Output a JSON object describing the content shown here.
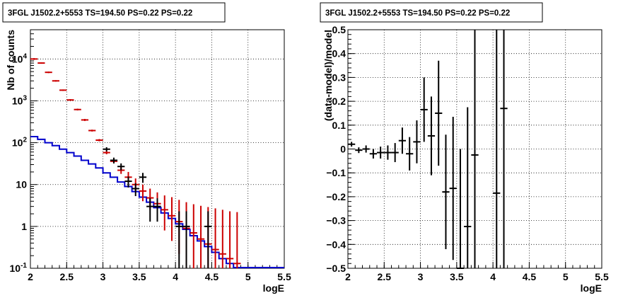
{
  "left_panel": {
    "title": "3FGL J1502.2+5553 TS=194.50 PS=0.22 PS=0.22",
    "xlabel": "logE",
    "ylabel": "Nb of counts"
  },
  "right_panel": {
    "title": "3FGL J1502.2+5553 TS=194.50 PS=0.22 PS=0.22",
    "xlabel": "logE",
    "ylabel": "(data-model)/model"
  },
  "colors": {
    "data": "#000000",
    "model_total": "#cc0000",
    "model_source": "#0000cc",
    "grid": "#000000"
  },
  "chart_data": [
    {
      "type": "line",
      "title": "3FGL J1502.2+5553 TS=194.50 PS=0.22 PS=0.22",
      "xlabel": "logE",
      "ylabel": "Nb of counts",
      "xlim": [
        2,
        5.5
      ],
      "ylim": [
        0.1,
        50000
      ],
      "yscale": "log",
      "grid": true,
      "xticks": [
        "2",
        "2.5",
        "3",
        "3.5",
        "4",
        "4.5",
        "5",
        "5.5"
      ],
      "yticks": [
        {
          "v": 0.1,
          "base": "10",
          "exp": "-1"
        },
        {
          "v": 1,
          "base": "1",
          "exp": ""
        },
        {
          "v": 10,
          "base": "10",
          "exp": ""
        },
        {
          "v": 100,
          "base": "10",
          "exp": "2"
        },
        {
          "v": 1000,
          "base": "10",
          "exp": "3"
        },
        {
          "v": 10000,
          "base": "10",
          "exp": "4"
        }
      ],
      "series": [
        {
          "kind": "step",
          "bin_edges": [
            2.0,
            2.1,
            2.2,
            2.3,
            2.4,
            2.5,
            2.6,
            2.7,
            2.8,
            2.9,
            3.0,
            3.1,
            3.2,
            3.3,
            3.4,
            3.5,
            3.6,
            3.7,
            3.8,
            3.9,
            4.0,
            4.1,
            4.2,
            4.3,
            4.4,
            4.5,
            4.6,
            4.7,
            4.8,
            4.9,
            5.0,
            5.1,
            5.2,
            5.3,
            5.4,
            5.5
          ],
          "values": [
            140,
            120,
            100,
            85,
            70,
            58,
            48,
            38,
            31,
            25,
            19,
            15,
            11.5,
            9,
            6.8,
            5,
            3.8,
            2.8,
            2.1,
            1.55,
            1.15,
            0.85,
            0.6,
            0.45,
            0.33,
            0.24,
            0.17,
            0.13,
            0.1,
            0.1,
            0.1,
            0.1,
            0.1,
            0.1,
            0.1
          ]
        },
        {
          "kind": "errorbar",
          "x": [
            2.05,
            2.15,
            2.25,
            2.35,
            2.45,
            2.55,
            2.65,
            2.75,
            2.85,
            2.95,
            3.05,
            3.15,
            3.25,
            3.35,
            3.45,
            3.55,
            3.65,
            3.75,
            3.85,
            3.95,
            4.05,
            4.15,
            4.25,
            4.35,
            4.45,
            4.55,
            4.65,
            4.75,
            4.85
          ],
          "y": [
            10000,
            8000,
            4800,
            3000,
            1800,
            1050,
            620,
            350,
            195,
            115,
            58,
            36,
            22,
            15,
            10,
            7,
            4.8,
            3.5,
            2.5,
            1.8,
            1.3,
            0.9,
            0.7,
            0.5,
            0.38,
            0.28,
            0.22,
            0.17,
            0.13
          ],
          "ylo": [
            9500,
            7700,
            4600,
            2880,
            1730,
            1000,
            590,
            330,
            185,
            108,
            53,
            32,
            18,
            11,
            7,
            4,
            2.5,
            1.4,
            0.8,
            0.45,
            0.22,
            0.1,
            0.1,
            0.1,
            0.1,
            0.1,
            0.1,
            0.1,
            0.1
          ],
          "yhi": [
            10500,
            8300,
            5000,
            3120,
            1870,
            1100,
            650,
            370,
            205,
            122,
            63,
            40,
            27,
            20,
            14,
            10,
            8,
            6.5,
            5.5,
            5,
            4.3,
            3.8,
            3.4,
            3.1,
            2.9,
            2.7,
            2.5,
            2.3,
            2.2
          ]
        },
        {
          "kind": "errorbar",
          "x": [
            3.05,
            3.15,
            3.25,
            3.35,
            3.45,
            3.55,
            3.65,
            3.75,
            4.05,
            4.15,
            4.45
          ],
          "y": [
            70,
            38,
            27,
            12,
            8,
            15,
            3,
            3,
            1,
            1,
            1
          ],
          "ylo": [
            62,
            32,
            22,
            8.5,
            5.3,
            11,
            1.3,
            1.3,
            0.1,
            0.1,
            0.1
          ],
          "yhi": [
            78,
            44,
            32,
            15.5,
            10.7,
            19,
            4.7,
            4.7,
            2.3,
            2.3,
            2.3
          ]
        }
      ]
    },
    {
      "type": "scatter",
      "title": "3FGL J1502.2+5553 TS=194.50 PS=0.22 PS=0.22",
      "xlabel": "logE",
      "ylabel": "(data-model)/model",
      "xlim": [
        2,
        5.5
      ],
      "ylim": [
        -0.5,
        0.5
      ],
      "grid": true,
      "xticks": [
        "2",
        "2.5",
        "3",
        "3.5",
        "4",
        "4.5",
        "5",
        "5.5"
      ],
      "yticks": [
        "−0.5",
        "−0.4",
        "−0.3",
        "−0.2",
        "−0.1",
        "0",
        "0.1",
        "0.2",
        "0.3",
        "0.4",
        "0.5"
      ],
      "series": [
        {
          "kind": "errorbar",
          "x": [
            2.05,
            2.15,
            2.25,
            2.35,
            2.45,
            2.55,
            2.65,
            2.75,
            2.85,
            2.95,
            3.05,
            3.15,
            3.25,
            3.35,
            3.45,
            3.55,
            3.65,
            3.75,
            4.05,
            4.15
          ],
          "y": [
            0.02,
            -0.005,
            0.0,
            -0.02,
            -0.015,
            -0.015,
            -0.015,
            0.035,
            -0.02,
            0.03,
            0.165,
            0.055,
            0.15,
            -0.18,
            -0.165,
            -0.5,
            -0.325,
            -0.025,
            -0.185,
            0.17
          ],
          "err": [
            0.01,
            0.012,
            0.015,
            0.02,
            0.025,
            0.03,
            0.04,
            0.055,
            0.07,
            0.09,
            0.135,
            0.165,
            0.22,
            0.24,
            0.3,
            0.5,
            0.5,
            1.0,
            1.0,
            1.0
          ]
        }
      ]
    }
  ]
}
